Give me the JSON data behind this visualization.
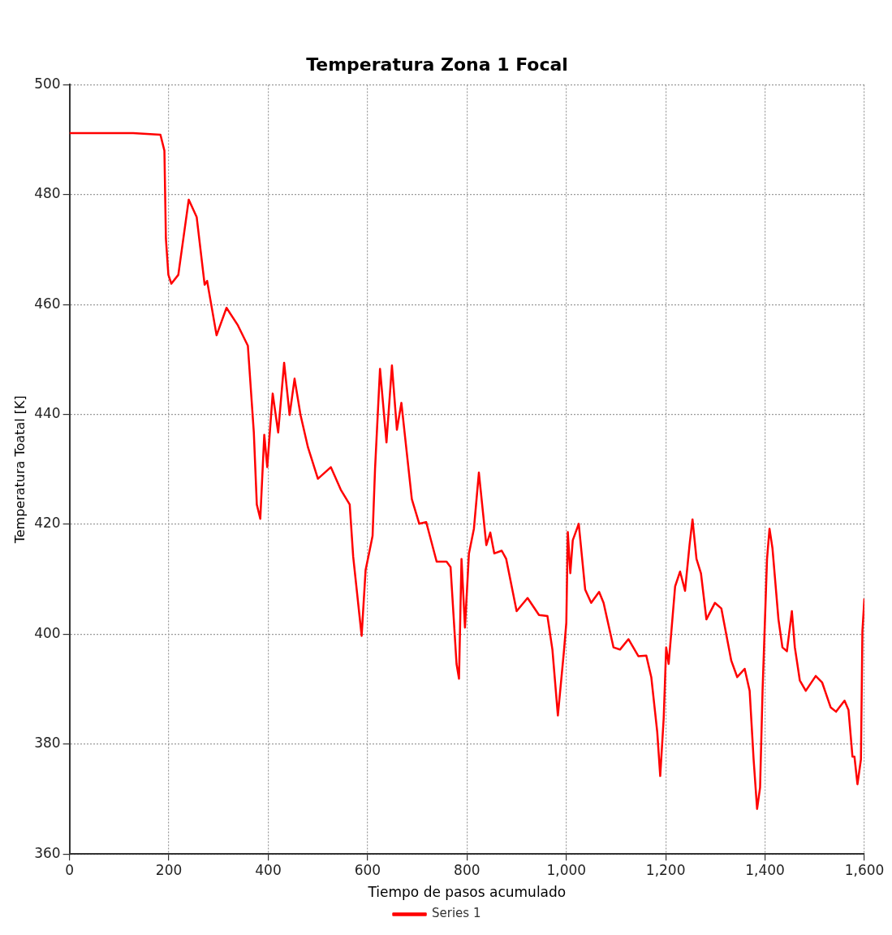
{
  "chart_data": {
    "type": "line",
    "title": "Temperatura Zona 1 Focal",
    "xlabel": "Tiempo de pasos acumulado",
    "ylabel": "Temperatura Toatal [K]",
    "xlim": [
      0,
      1600
    ],
    "xticks": [
      0,
      200,
      400,
      600,
      800,
      {
        "value": 1000,
        "label": "1,000"
      },
      {
        "value": 1200,
        "label": "1,200"
      },
      {
        "value": 1400,
        "label": "1,400"
      },
      {
        "value": 1600,
        "label": "1,600"
      }
    ],
    "ylim": [
      360,
      500
    ],
    "yticks": [
      360,
      380,
      400,
      420,
      440,
      460,
      480,
      500
    ],
    "grid": true,
    "legend": "bottom",
    "marker": "none",
    "line_style": "solid",
    "series": [
      {
        "name": "Series 1",
        "color": "#ff0000",
        "x": [
          0,
          128,
          183,
          191,
          194,
          199,
          205,
          219,
          240,
          256,
          272,
          277,
          296,
          316,
          339,
          359,
          371,
          377,
          384,
          392,
          398,
          409,
          420,
          432,
          443,
          453,
          465,
          480,
          500,
          526,
          546,
          564,
          571,
          588,
          596,
          604,
          610,
          615,
          625,
          638,
          649,
          659,
          668,
          689,
          704,
          718,
          739,
          759,
          767,
          779,
          784,
          789,
          796,
          804,
          814,
          824,
          839,
          847,
          855,
          870,
          879,
          900,
          922,
          945,
          962,
          972,
          983,
          995,
          1000,
          1003,
          1008,
          1013,
          1025,
          1038,
          1050,
          1066,
          1075,
          1095,
          1108,
          1125,
          1145,
          1161,
          1171,
          1183,
          1189,
          1196,
          1201,
          1206,
          1219,
          1229,
          1239,
          1248,
          1254,
          1262,
          1271,
          1282,
          1299,
          1312,
          1332,
          1344,
          1359,
          1369,
          1377,
          1384,
          1390,
          1395,
          1404,
          1409,
          1415,
          1427,
          1435,
          1444,
          1454,
          1460,
          1470,
          1482,
          1502,
          1515,
          1532,
          1543,
          1560,
          1568,
          1576,
          1580,
          1586,
          1593,
          1596,
          1600
        ],
        "values": [
          491.2,
          491.2,
          490.9,
          488,
          472,
          465.4,
          463.8,
          465.4,
          479.1,
          475.9,
          463.6,
          464.3,
          454.4,
          459.4,
          456.2,
          452.5,
          436.7,
          423.6,
          421,
          436.3,
          430.4,
          443.8,
          436.7,
          449.4,
          439.9,
          446.5,
          439.9,
          434,
          428.3,
          430.4,
          426.3,
          423.6,
          414.1,
          399.7,
          411.7,
          415.2,
          417.9,
          430.1,
          448.3,
          434.9,
          448.9,
          437.2,
          442.1,
          424.6,
          420.1,
          420.4,
          413.2,
          413.2,
          412.2,
          394.6,
          391.9,
          413.7,
          401.2,
          414.7,
          419.2,
          429.4,
          416.2,
          418.5,
          414.7,
          415.2,
          413.7,
          404.2,
          406.6,
          403.5,
          403.3,
          397.2,
          385.2,
          396.7,
          402.1,
          418.6,
          411.1,
          417.1,
          420.1,
          408.1,
          405.7,
          407.7,
          405.7,
          397.6,
          397.2,
          399.1,
          396,
          396.1,
          392.2,
          382.2,
          374.2,
          384.7,
          397.6,
          394.6,
          408.7,
          411.4,
          407.9,
          416.2,
          420.9,
          413.7,
          411.1,
          402.7,
          405.7,
          404.7,
          395.2,
          392.2,
          393.7,
          389.7,
          377.2,
          368.2,
          372.1,
          389.7,
          413.7,
          419.2,
          415.6,
          402.7,
          397.6,
          396.9,
          404.2,
          397.6,
          391.6,
          389.7,
          392.4,
          391.2,
          386.7,
          385.9,
          387.9,
          386.2,
          377.7,
          377.7,
          372.7,
          377.2,
          400.6,
          406.5
        ]
      }
    ]
  }
}
